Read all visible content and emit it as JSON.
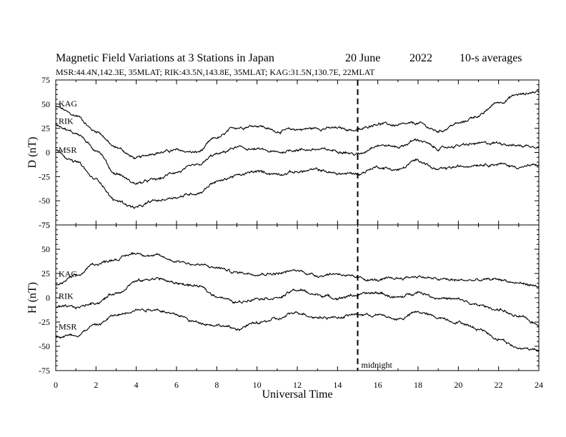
{
  "header": {
    "title_main": "Magnetic Field Variations at 3 Stations in Japan",
    "title_date": "20 June",
    "title_year": "2022",
    "title_avg": "10-s averages",
    "subtitle": "MSR:44.4N,142.3E, 35MLAT;  RIK:43.5N,143.8E, 35MLAT;  KAG:31.5N,130.7E, 22MLAT"
  },
  "annotation": {
    "midnight_label": "midnight",
    "midnight_ut": 15
  },
  "chart_data": [
    {
      "type": "line",
      "panel": "top",
      "ylabel": "D (nT)",
      "xlabel": "",
      "xlim": [
        0,
        24
      ],
      "ylim": [
        -75,
        75
      ],
      "yticks": [
        75,
        50,
        25,
        0,
        -25,
        -50,
        -75
      ],
      "xticks": [
        0,
        2,
        4,
        6,
        8,
        10,
        12,
        14,
        16,
        18,
        20,
        22,
        24
      ],
      "series": [
        {
          "name": "KAG",
          "x": [
            0,
            1,
            2,
            3,
            4,
            5,
            6,
            7,
            8,
            9,
            10,
            11,
            12,
            13,
            14,
            15,
            16,
            17,
            18,
            19,
            20,
            21,
            22,
            23,
            24
          ],
          "values": [
            47,
            38,
            22,
            5,
            -6,
            0,
            2,
            0,
            15,
            26,
            28,
            22,
            24,
            25,
            25,
            23,
            30,
            28,
            30,
            22,
            30,
            38,
            52,
            60,
            63
          ]
        },
        {
          "name": "RIK",
          "x": [
            0,
            1,
            2,
            3,
            4,
            5,
            6,
            7,
            8,
            9,
            10,
            11,
            12,
            13,
            14,
            15,
            16,
            17,
            18,
            19,
            20,
            21,
            22,
            23,
            24
          ],
          "values": [
            29,
            20,
            3,
            -22,
            -32,
            -28,
            -20,
            -14,
            -2,
            5,
            3,
            0,
            3,
            3,
            2,
            -2,
            8,
            6,
            13,
            4,
            7,
            9,
            10,
            7,
            7
          ]
        },
        {
          "name": "MSR",
          "x": [
            0,
            1,
            2,
            3,
            4,
            5,
            6,
            7,
            8,
            9,
            10,
            11,
            12,
            13,
            14,
            15,
            16,
            17,
            18,
            19,
            20,
            21,
            22,
            23,
            24
          ],
          "values": [
            2,
            -10,
            -28,
            -50,
            -57,
            -50,
            -46,
            -42,
            -30,
            -24,
            -20,
            -22,
            -20,
            -18,
            -22,
            -22,
            -15,
            -18,
            -8,
            -18,
            -15,
            -12,
            -12,
            -15,
            -13
          ]
        }
      ]
    },
    {
      "type": "line",
      "panel": "bottom",
      "ylabel": "H (nT)",
      "xlabel": "Universal Time",
      "xlim": [
        0,
        24
      ],
      "ylim": [
        -75,
        75
      ],
      "yticks": [
        75,
        50,
        25,
        0,
        -25,
        -50,
        -75
      ],
      "xticks": [
        0,
        2,
        4,
        6,
        8,
        10,
        12,
        14,
        16,
        18,
        20,
        22,
        24
      ],
      "series": [
        {
          "name": "KAG",
          "x": [
            0,
            1,
            2,
            3,
            4,
            5,
            6,
            7,
            8,
            9,
            10,
            11,
            12,
            13,
            14,
            15,
            16,
            17,
            18,
            19,
            20,
            21,
            22,
            23,
            24
          ],
          "values": [
            13,
            22,
            35,
            40,
            46,
            43,
            38,
            34,
            31,
            26,
            25,
            25,
            28,
            23,
            25,
            20,
            18,
            20,
            22,
            19,
            18,
            18,
            19,
            15,
            12
          ]
        },
        {
          "name": "RIK",
          "x": [
            0,
            1,
            2,
            3,
            4,
            5,
            6,
            7,
            8,
            9,
            10,
            11,
            12,
            13,
            14,
            15,
            16,
            17,
            18,
            19,
            20,
            21,
            22,
            23,
            24
          ],
          "values": [
            -10,
            -10,
            -5,
            5,
            17,
            20,
            15,
            12,
            2,
            -5,
            0,
            0,
            8,
            3,
            0,
            3,
            5,
            0,
            6,
            0,
            -2,
            -8,
            -12,
            -20,
            -27
          ]
        },
        {
          "name": "MSR",
          "x": [
            0,
            1,
            2,
            3,
            4,
            5,
            6,
            7,
            8,
            9,
            10,
            11,
            12,
            13,
            14,
            15,
            16,
            17,
            18,
            19,
            20,
            21,
            22,
            23,
            24
          ],
          "values": [
            -40,
            -38,
            -28,
            -18,
            -12,
            -12,
            -18,
            -25,
            -28,
            -32,
            -26,
            -22,
            -15,
            -20,
            -20,
            -17,
            -18,
            -22,
            -15,
            -20,
            -25,
            -32,
            -42,
            -52,
            -53
          ]
        }
      ]
    }
  ]
}
